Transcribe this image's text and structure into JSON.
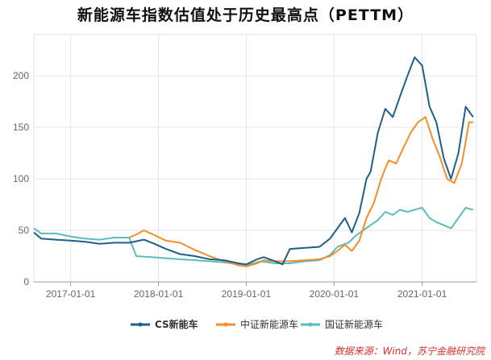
{
  "chart_data": {
    "type": "line",
    "title": "新能源车指数估值处于历史最高点（PETTM）",
    "xlabel": "",
    "ylabel": "",
    "ylim": [
      0,
      240
    ],
    "yticks": [
      0,
      50,
      100,
      150,
      200
    ],
    "xlim": [
      "2016-08-01",
      "2021-08-15"
    ],
    "xticks": [
      "2017-01-01",
      "2018-01-01",
      "2019-01-01",
      "2020-01-01",
      "2021-01-01"
    ],
    "grid": true,
    "legend_position": "bottom-center",
    "series": [
      {
        "name": "CS新能车",
        "color": "#1f5f8b",
        "points": [
          [
            "2016-08-01",
            48
          ],
          [
            "2016-09-01",
            42
          ],
          [
            "2016-11-01",
            41
          ],
          [
            "2017-01-01",
            40
          ],
          [
            "2017-03-01",
            39
          ],
          [
            "2017-05-01",
            37
          ],
          [
            "2017-07-01",
            38
          ],
          [
            "2017-09-01",
            38
          ],
          [
            "2017-11-01",
            41
          ],
          [
            "2017-12-15",
            37
          ],
          [
            "2018-02-01",
            32
          ],
          [
            "2018-04-01",
            27
          ],
          [
            "2018-06-01",
            25
          ],
          [
            "2018-08-01",
            22
          ],
          [
            "2018-10-01",
            21
          ],
          [
            "2018-12-01",
            18
          ],
          [
            "2019-01-01",
            17
          ],
          [
            "2019-02-15",
            22
          ],
          [
            "2019-03-15",
            24
          ],
          [
            "2019-05-01",
            20
          ],
          [
            "2019-06-01",
            17
          ],
          [
            "2019-07-01",
            32
          ],
          [
            "2019-09-01",
            33
          ],
          [
            "2019-11-01",
            34
          ],
          [
            "2019-12-15",
            42
          ],
          [
            "2020-01-15",
            52
          ],
          [
            "2020-02-15",
            62
          ],
          [
            "2020-03-15",
            48
          ],
          [
            "2020-04-15",
            67
          ],
          [
            "2020-05-15",
            100
          ],
          [
            "2020-06-01",
            107
          ],
          [
            "2020-07-01",
            145
          ],
          [
            "2020-08-01",
            168
          ],
          [
            "2020-09-01",
            160
          ],
          [
            "2020-10-01",
            180
          ],
          [
            "2020-11-01",
            200
          ],
          [
            "2020-12-01",
            218
          ],
          [
            "2021-01-01",
            210
          ],
          [
            "2021-02-01",
            170
          ],
          [
            "2021-03-01",
            155
          ],
          [
            "2021-04-01",
            120
          ],
          [
            "2021-05-01",
            100
          ],
          [
            "2021-06-01",
            125
          ],
          [
            "2021-07-01",
            170
          ],
          [
            "2021-08-01",
            160
          ]
        ]
      },
      {
        "name": "中证新能源车",
        "color": "#f28e2b",
        "points": [
          [
            "2017-09-01",
            43
          ],
          [
            "2017-10-01",
            46
          ],
          [
            "2017-11-01",
            50
          ],
          [
            "2017-12-01",
            47
          ],
          [
            "2018-02-01",
            40
          ],
          [
            "2018-04-01",
            38
          ],
          [
            "2018-06-01",
            31
          ],
          [
            "2018-08-01",
            25
          ],
          [
            "2018-10-01",
            20
          ],
          [
            "2018-12-01",
            16
          ],
          [
            "2019-01-01",
            15
          ],
          [
            "2019-02-15",
            18
          ],
          [
            "2019-03-15",
            21
          ],
          [
            "2019-05-01",
            20
          ],
          [
            "2019-07-01",
            20
          ],
          [
            "2019-09-01",
            21
          ],
          [
            "2019-11-01",
            22
          ],
          [
            "2019-12-15",
            25
          ],
          [
            "2020-01-15",
            30
          ],
          [
            "2020-02-15",
            36
          ],
          [
            "2020-03-15",
            30
          ],
          [
            "2020-04-15",
            40
          ],
          [
            "2020-05-15",
            62
          ],
          [
            "2020-06-15",
            77
          ],
          [
            "2020-07-15",
            100
          ],
          [
            "2020-08-15",
            118
          ],
          [
            "2020-09-15",
            115
          ],
          [
            "2020-10-15",
            130
          ],
          [
            "2020-11-15",
            145
          ],
          [
            "2020-12-15",
            155
          ],
          [
            "2021-01-15",
            160
          ],
          [
            "2021-02-15",
            138
          ],
          [
            "2021-03-15",
            122
          ],
          [
            "2021-04-15",
            100
          ],
          [
            "2021-05-15",
            96
          ],
          [
            "2021-06-15",
            115
          ],
          [
            "2021-07-15",
            155
          ],
          [
            "2021-08-01",
            155
          ]
        ]
      },
      {
        "name": "国证新能源车",
        "color": "#5bbcbc",
        "points": [
          [
            "2016-08-01",
            52
          ],
          [
            "2016-09-01",
            47
          ],
          [
            "2016-11-01",
            47
          ],
          [
            "2017-01-01",
            44
          ],
          [
            "2017-03-01",
            42
          ],
          [
            "2017-05-01",
            41
          ],
          [
            "2017-07-01",
            43
          ],
          [
            "2017-09-01",
            43
          ],
          [
            "2017-10-01",
            25
          ],
          [
            "2017-12-01",
            24
          ],
          [
            "2018-02-01",
            23
          ],
          [
            "2018-04-01",
            22
          ],
          [
            "2018-06-01",
            21
          ],
          [
            "2018-08-01",
            20
          ],
          [
            "2018-10-01",
            19
          ],
          [
            "2018-12-01",
            17
          ],
          [
            "2019-01-01",
            16
          ],
          [
            "2019-03-01",
            20
          ],
          [
            "2019-05-01",
            18
          ],
          [
            "2019-07-01",
            18
          ],
          [
            "2019-09-01",
            20
          ],
          [
            "2019-11-01",
            21
          ],
          [
            "2019-12-15",
            26
          ],
          [
            "2020-01-15",
            34
          ],
          [
            "2020-03-01",
            38
          ],
          [
            "2020-04-01",
            45
          ],
          [
            "2020-05-01",
            50
          ],
          [
            "2020-06-01",
            55
          ],
          [
            "2020-07-01",
            60
          ],
          [
            "2020-08-01",
            68
          ],
          [
            "2020-09-01",
            65
          ],
          [
            "2020-10-01",
            70
          ],
          [
            "2020-11-01",
            68
          ],
          [
            "2020-12-01",
            70
          ],
          [
            "2021-01-01",
            72
          ],
          [
            "2021-02-01",
            62
          ],
          [
            "2021-03-01",
            58
          ],
          [
            "2021-04-01",
            55
          ],
          [
            "2021-05-01",
            52
          ],
          [
            "2021-06-01",
            62
          ],
          [
            "2021-07-01",
            72
          ],
          [
            "2021-08-01",
            70
          ]
        ]
      }
    ]
  },
  "source": "数据来源：Wind，苏宁金融研究院"
}
